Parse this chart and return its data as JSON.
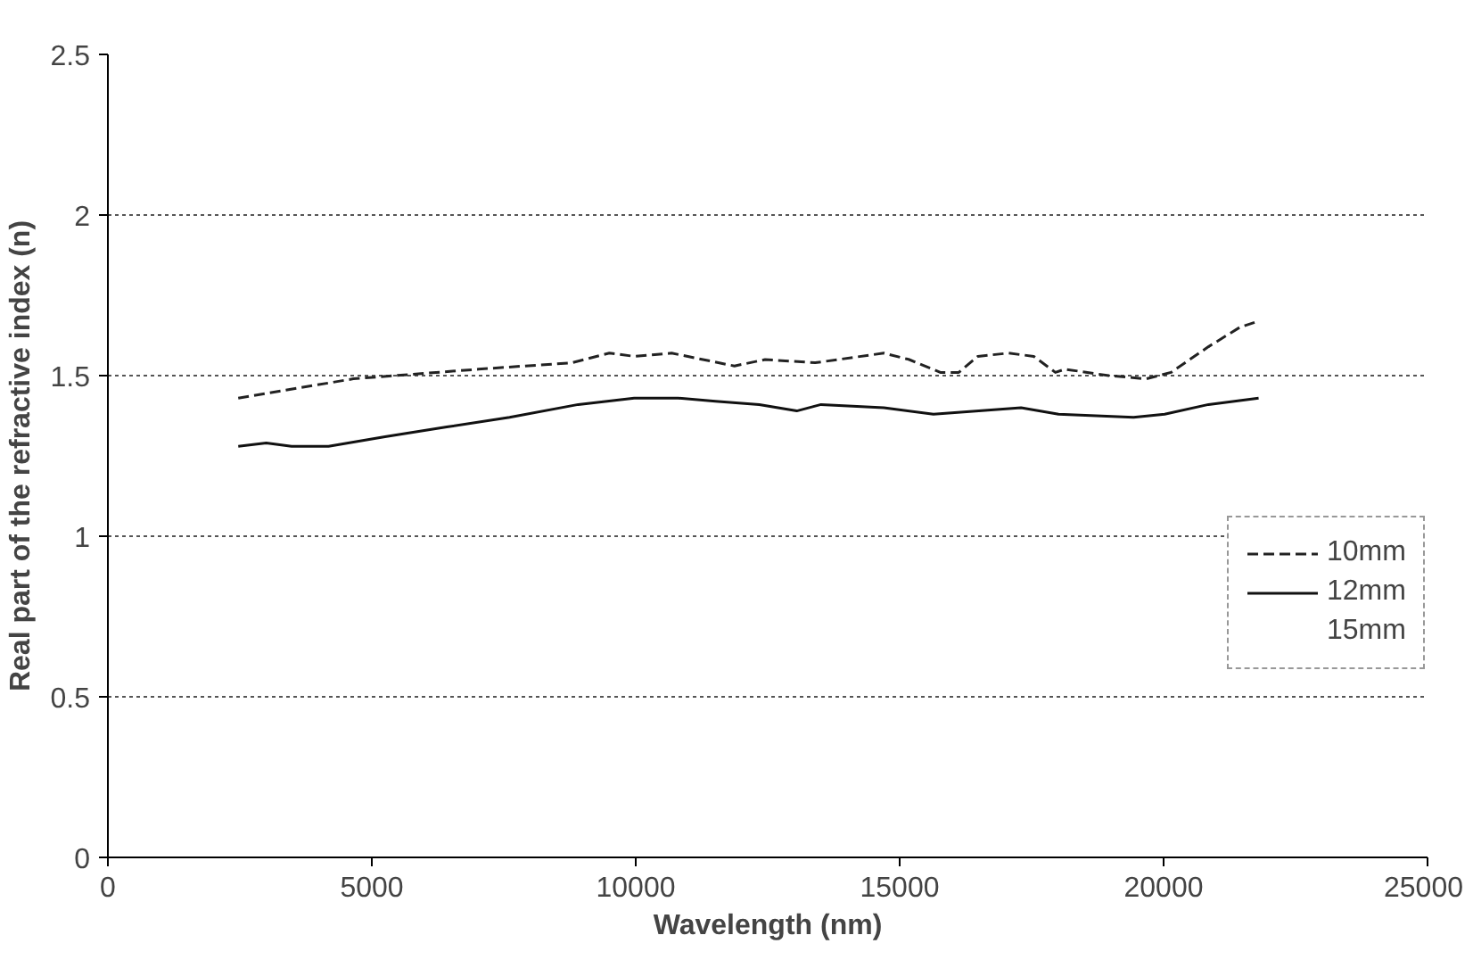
{
  "chart_data": {
    "type": "line",
    "xlabel": "Wavelength (nm)",
    "ylabel": "Real part of the refractive index (n)",
    "xlim": [
      0,
      25000
    ],
    "ylim": [
      0,
      2.5
    ],
    "xticks": [
      0,
      5000,
      10000,
      15000,
      20000,
      25000
    ],
    "yticks": [
      0,
      {
        "value": 0.5,
        "label": "0.5"
      },
      1,
      {
        "value": 1.5,
        "label": "1.5"
      },
      2,
      {
        "value": 2.5,
        "label": "2.5"
      }
    ],
    "grid": "y",
    "legend": "right",
    "marker": "none",
    "series": [
      {
        "name": "10mm",
        "color": "#222222",
        "line_style": "dashed",
        "x": [
          2470,
          4650,
          7020,
          8790,
          9500,
          9970,
          10680,
          11870,
          12450,
          13400,
          14700,
          15180,
          15770,
          16120,
          16480,
          17060,
          17540,
          17950,
          18130,
          18960,
          19670,
          20140,
          20850,
          21440,
          21800
        ],
        "values": [
          1.43,
          1.49,
          1.52,
          1.54,
          1.57,
          1.56,
          1.57,
          1.53,
          1.55,
          1.54,
          1.57,
          1.55,
          1.51,
          1.51,
          1.56,
          1.57,
          1.56,
          1.51,
          1.52,
          1.5,
          1.49,
          1.51,
          1.59,
          1.65,
          1.67
        ]
      },
      {
        "name": "12mm",
        "color": "#111111",
        "line_style": "solid",
        "x": [
          2470,
          3000,
          3480,
          4180,
          5250,
          6420,
          7610,
          8910,
          9970,
          10800,
          11510,
          12340,
          13050,
          13510,
          14700,
          15640,
          17300,
          18010,
          19430,
          20020,
          20850,
          21800
        ],
        "values": [
          1.28,
          1.29,
          1.28,
          1.28,
          1.31,
          1.34,
          1.37,
          1.41,
          1.43,
          1.43,
          1.42,
          1.41,
          1.39,
          1.41,
          1.4,
          1.38,
          1.4,
          1.38,
          1.37,
          1.38,
          1.41,
          1.43
        ]
      },
      {
        "name": "15mm"
      }
    ]
  }
}
